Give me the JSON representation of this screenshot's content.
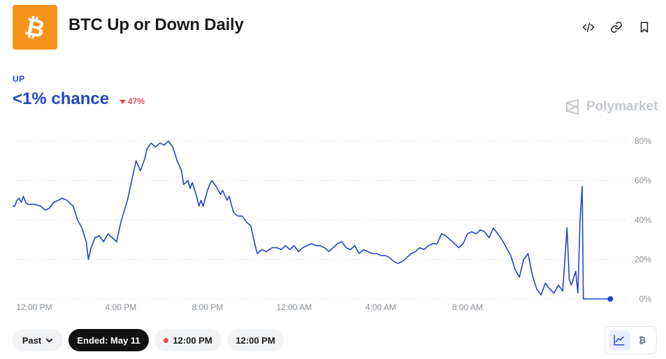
{
  "header": {
    "title": "BTC Up or Down Daily",
    "icons": [
      "embed-code-icon",
      "link-icon",
      "bookmark-icon"
    ],
    "logo_color": "#F7931A"
  },
  "market": {
    "outcome": "UP",
    "chance": "<1% chance",
    "change": "47%",
    "change_direction": "down",
    "accent_color": "#2246C8",
    "down_color": "#E5484D"
  },
  "watermark": "Polymarket",
  "chart_data": {
    "type": "line",
    "x_tick_labels": [
      "12:00 PM",
      "4:00 PM",
      "8:00 PM",
      "12:00 AM",
      "4:00 AM",
      "8:00 AM"
    ],
    "y_tick_labels": [
      "80%",
      "60%",
      "40%",
      "20%",
      "0%"
    ],
    "ylim": [
      0,
      80
    ],
    "grid": "horizontal dotted",
    "series_color": "#2246C8",
    "series": [
      {
        "points": [
          [
            11.0,
            47
          ],
          [
            11.1,
            47
          ],
          [
            11.2,
            50
          ],
          [
            11.3,
            51
          ],
          [
            11.4,
            49
          ],
          [
            11.5,
            52
          ],
          [
            11.6,
            49
          ],
          [
            11.7,
            48
          ],
          [
            12.0,
            48
          ],
          [
            12.3,
            47
          ],
          [
            12.5,
            45
          ],
          [
            12.7,
            46
          ],
          [
            12.9,
            49
          ],
          [
            13.1,
            50
          ],
          [
            13.3,
            51
          ],
          [
            13.5,
            50
          ],
          [
            13.8,
            47
          ],
          [
            14.0,
            40
          ],
          [
            14.2,
            36
          ],
          [
            14.4,
            29
          ],
          [
            14.5,
            20
          ],
          [
            14.6,
            25
          ],
          [
            14.8,
            31
          ],
          [
            15.0,
            32
          ],
          [
            15.2,
            29
          ],
          [
            15.4,
            33
          ],
          [
            15.6,
            31
          ],
          [
            15.8,
            29
          ],
          [
            16.0,
            39
          ],
          [
            16.3,
            50
          ],
          [
            16.5,
            60
          ],
          [
            16.7,
            70
          ],
          [
            16.9,
            65
          ],
          [
            17.1,
            71
          ],
          [
            17.2,
            76
          ],
          [
            17.4,
            79
          ],
          [
            17.6,
            77
          ],
          [
            17.8,
            79
          ],
          [
            18.0,
            78
          ],
          [
            18.2,
            80
          ],
          [
            18.4,
            77
          ],
          [
            18.6,
            70
          ],
          [
            18.8,
            65
          ],
          [
            18.9,
            58
          ],
          [
            19.1,
            60
          ],
          [
            19.2,
            56
          ],
          [
            19.3,
            59
          ],
          [
            19.5,
            52
          ],
          [
            19.6,
            47
          ],
          [
            19.7,
            50
          ],
          [
            19.8,
            47
          ],
          [
            20.0,
            55
          ],
          [
            20.1,
            58
          ],
          [
            20.2,
            60
          ],
          [
            20.4,
            57
          ],
          [
            20.6,
            53
          ],
          [
            20.7,
            55
          ],
          [
            20.9,
            50
          ],
          [
            21.0,
            52
          ],
          [
            21.2,
            44
          ],
          [
            21.4,
            42
          ],
          [
            21.6,
            42
          ],
          [
            21.8,
            39
          ],
          [
            22.0,
            37
          ],
          [
            22.2,
            27
          ],
          [
            22.3,
            23
          ],
          [
            22.5,
            25
          ],
          [
            22.7,
            24
          ],
          [
            23.0,
            26
          ],
          [
            23.2,
            26
          ],
          [
            23.4,
            25
          ],
          [
            23.6,
            27
          ],
          [
            23.8,
            25
          ],
          [
            24.0,
            27
          ],
          [
            24.2,
            24
          ],
          [
            24.4,
            26
          ],
          [
            24.6,
            27
          ],
          [
            24.8,
            28
          ],
          [
            25.0,
            27
          ],
          [
            25.2,
            27
          ],
          [
            25.4,
            26
          ],
          [
            25.6,
            24
          ],
          [
            25.8,
            26
          ],
          [
            26.0,
            28
          ],
          [
            26.2,
            29
          ],
          [
            26.4,
            26
          ],
          [
            26.6,
            25
          ],
          [
            26.8,
            27
          ],
          [
            27.0,
            23
          ],
          [
            27.2,
            25
          ],
          [
            27.4,
            24
          ],
          [
            27.6,
            23
          ],
          [
            27.8,
            23
          ],
          [
            28.0,
            22
          ],
          [
            28.2,
            22
          ],
          [
            28.4,
            21
          ],
          [
            28.6,
            19
          ],
          [
            28.8,
            18
          ],
          [
            29.0,
            19
          ],
          [
            29.2,
            21
          ],
          [
            29.4,
            23
          ],
          [
            29.6,
            24
          ],
          [
            29.8,
            26
          ],
          [
            30.0,
            25
          ],
          [
            30.2,
            27
          ],
          [
            30.4,
            28
          ],
          [
            30.6,
            28
          ],
          [
            30.8,
            33
          ],
          [
            31.0,
            32
          ],
          [
            31.2,
            30
          ],
          [
            31.4,
            28
          ],
          [
            31.6,
            26
          ],
          [
            31.8,
            28
          ],
          [
            32.0,
            33
          ],
          [
            32.2,
            34
          ],
          [
            32.4,
            33
          ],
          [
            32.6,
            35
          ],
          [
            32.8,
            34
          ],
          [
            33.0,
            31
          ],
          [
            33.2,
            36
          ],
          [
            33.4,
            33
          ],
          [
            33.6,
            30
          ],
          [
            33.8,
            26
          ],
          [
            34.0,
            22
          ],
          [
            34.2,
            15
          ],
          [
            34.4,
            11
          ],
          [
            34.6,
            20
          ],
          [
            34.8,
            23
          ],
          [
            35.0,
            12
          ],
          [
            35.2,
            5
          ],
          [
            35.4,
            2
          ],
          [
            35.6,
            8
          ],
          [
            35.8,
            5
          ],
          [
            36.0,
            3
          ],
          [
            36.2,
            7
          ],
          [
            36.4,
            4
          ],
          [
            36.6,
            36
          ],
          [
            36.7,
            10
          ],
          [
            36.8,
            7
          ],
          [
            37.0,
            14
          ],
          [
            37.1,
            3
          ],
          [
            37.2,
            40
          ],
          [
            37.3,
            57
          ],
          [
            37.35,
            0
          ],
          [
            38.5,
            0
          ],
          [
            38.6,
            0
          ]
        ]
      }
    ]
  },
  "controls": {
    "range_label": "Past",
    "ended_label": "Ended: May 11",
    "time_live": "12:00 PM",
    "time_other": "12:00 PM",
    "live_dot_color": "#E5484D",
    "view_toggle": [
      "line-chart-icon",
      "bitcoin-icon"
    ]
  }
}
